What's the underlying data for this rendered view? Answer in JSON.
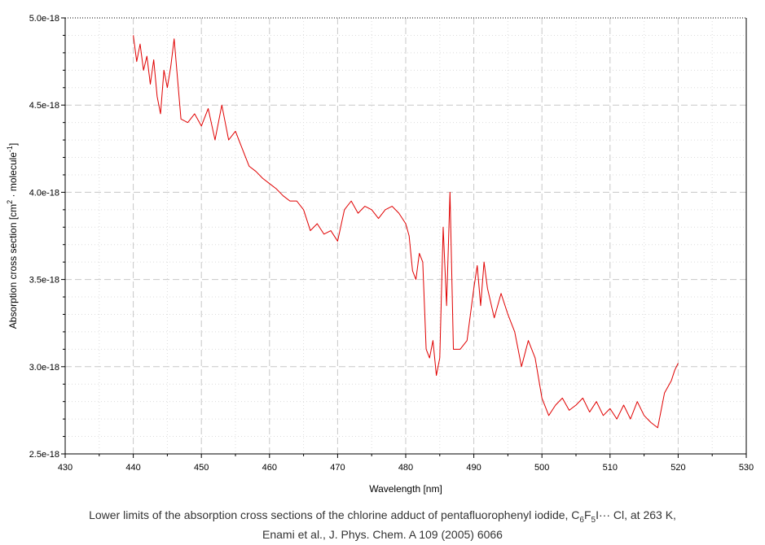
{
  "chart_data": {
    "type": "line",
    "xlabel": "Wavelength [nm]",
    "ylabel": {
      "prefix": "Absorption cross section [cm",
      "exp1": "2",
      "mid": " · molecule",
      "exp2": "-1",
      "suffix": "]"
    },
    "xlim": [
      430,
      530
    ],
    "ylim": [
      2.5e-18,
      5e-18
    ],
    "x_ticks": [
      430,
      440,
      450,
      460,
      470,
      480,
      490,
      500,
      510,
      520,
      530
    ],
    "y_ticks": [
      2.5e-18,
      3e-18,
      3.5e-18,
      4e-18,
      4.5e-18,
      5e-18
    ],
    "x_tick_labels": [
      "430",
      "440",
      "450",
      "460",
      "470",
      "480",
      "490",
      "500",
      "510",
      "520",
      "530"
    ],
    "y_tick_labels": [
      "2.5e-18",
      "3.0e-18",
      "3.5e-18",
      "4.0e-18",
      "4.5e-18",
      "5.0e-18"
    ],
    "grid": true,
    "series": [
      {
        "color": "#e00000",
        "x": [
          440,
          440.5,
          441,
          441.5,
          442,
          442.5,
          443,
          443.5,
          444,
          444.5,
          445,
          445.5,
          446,
          446.5,
          447,
          448,
          449,
          450,
          451,
          452,
          453,
          454,
          455,
          456,
          457,
          458,
          459,
          460,
          461,
          462,
          463,
          464,
          465,
          466,
          467,
          468,
          469,
          470,
          471,
          472,
          473,
          474,
          475,
          476,
          477,
          478,
          479,
          480,
          480.5,
          481,
          481.5,
          482,
          482.5,
          483,
          483.5,
          484,
          484.5,
          485,
          485.5,
          486,
          486.5,
          487,
          488,
          489,
          490,
          490.5,
          491,
          491.5,
          492,
          493,
          494,
          495,
          496,
          497,
          498,
          499,
          500,
          501,
          502,
          503,
          504,
          505,
          506,
          507,
          508,
          509,
          510,
          511,
          512,
          513,
          514,
          515,
          516,
          517,
          518,
          519,
          519.5,
          520
        ],
        "y": [
          4.9e-18,
          4.75e-18,
          4.85e-18,
          4.7e-18,
          4.78e-18,
          4.62e-18,
          4.76e-18,
          4.55e-18,
          4.45e-18,
          4.7e-18,
          4.6e-18,
          4.72e-18,
          4.88e-18,
          4.65e-18,
          4.42e-18,
          4.4e-18,
          4.45e-18,
          4.38e-18,
          4.48e-18,
          4.3e-18,
          4.5e-18,
          4.3e-18,
          4.35e-18,
          4.25e-18,
          4.15e-18,
          4.12e-18,
          4.08e-18,
          4.05e-18,
          4.02e-18,
          3.98e-18,
          3.95e-18,
          3.95e-18,
          3.9e-18,
          3.78e-18,
          3.82e-18,
          3.76e-18,
          3.78e-18,
          3.72e-18,
          3.9e-18,
          3.95e-18,
          3.88e-18,
          3.92e-18,
          3.9e-18,
          3.85e-18,
          3.9e-18,
          3.92e-18,
          3.88e-18,
          3.82e-18,
          3.75e-18,
          3.55e-18,
          3.5e-18,
          3.65e-18,
          3.6e-18,
          3.1e-18,
          3.05e-18,
          3.15e-18,
          2.95e-18,
          3.05e-18,
          3.8e-18,
          3.35e-18,
          4e-18,
          3.1e-18,
          3.1e-18,
          3.15e-18,
          3.45e-18,
          3.58e-18,
          3.35e-18,
          3.6e-18,
          3.45e-18,
          3.28e-18,
          3.42e-18,
          3.3e-18,
          3.2e-18,
          3e-18,
          3.15e-18,
          3.05e-18,
          2.82e-18,
          2.72e-18,
          2.78e-18,
          2.82e-18,
          2.75e-18,
          2.78e-18,
          2.82e-18,
          2.74e-18,
          2.8e-18,
          2.72e-18,
          2.76e-18,
          2.7e-18,
          2.78e-18,
          2.7e-18,
          2.8e-18,
          2.72e-18,
          2.68e-18,
          2.65e-18,
          2.85e-18,
          2.92e-18,
          2.98e-18,
          3.02e-18
        ]
      }
    ],
    "caption_line1": {
      "text_before": "Lower limits of the absorption cross sections of the chlorine adduct of pentafluorophenyl iodide, C",
      "sub1": "6",
      "mid1": "F",
      "sub2": "5",
      "text_after": "I··· Cl, at 263 K,"
    },
    "caption_line2": "Enami et al., J. Phys. Chem. A 109 (2005) 6066"
  }
}
